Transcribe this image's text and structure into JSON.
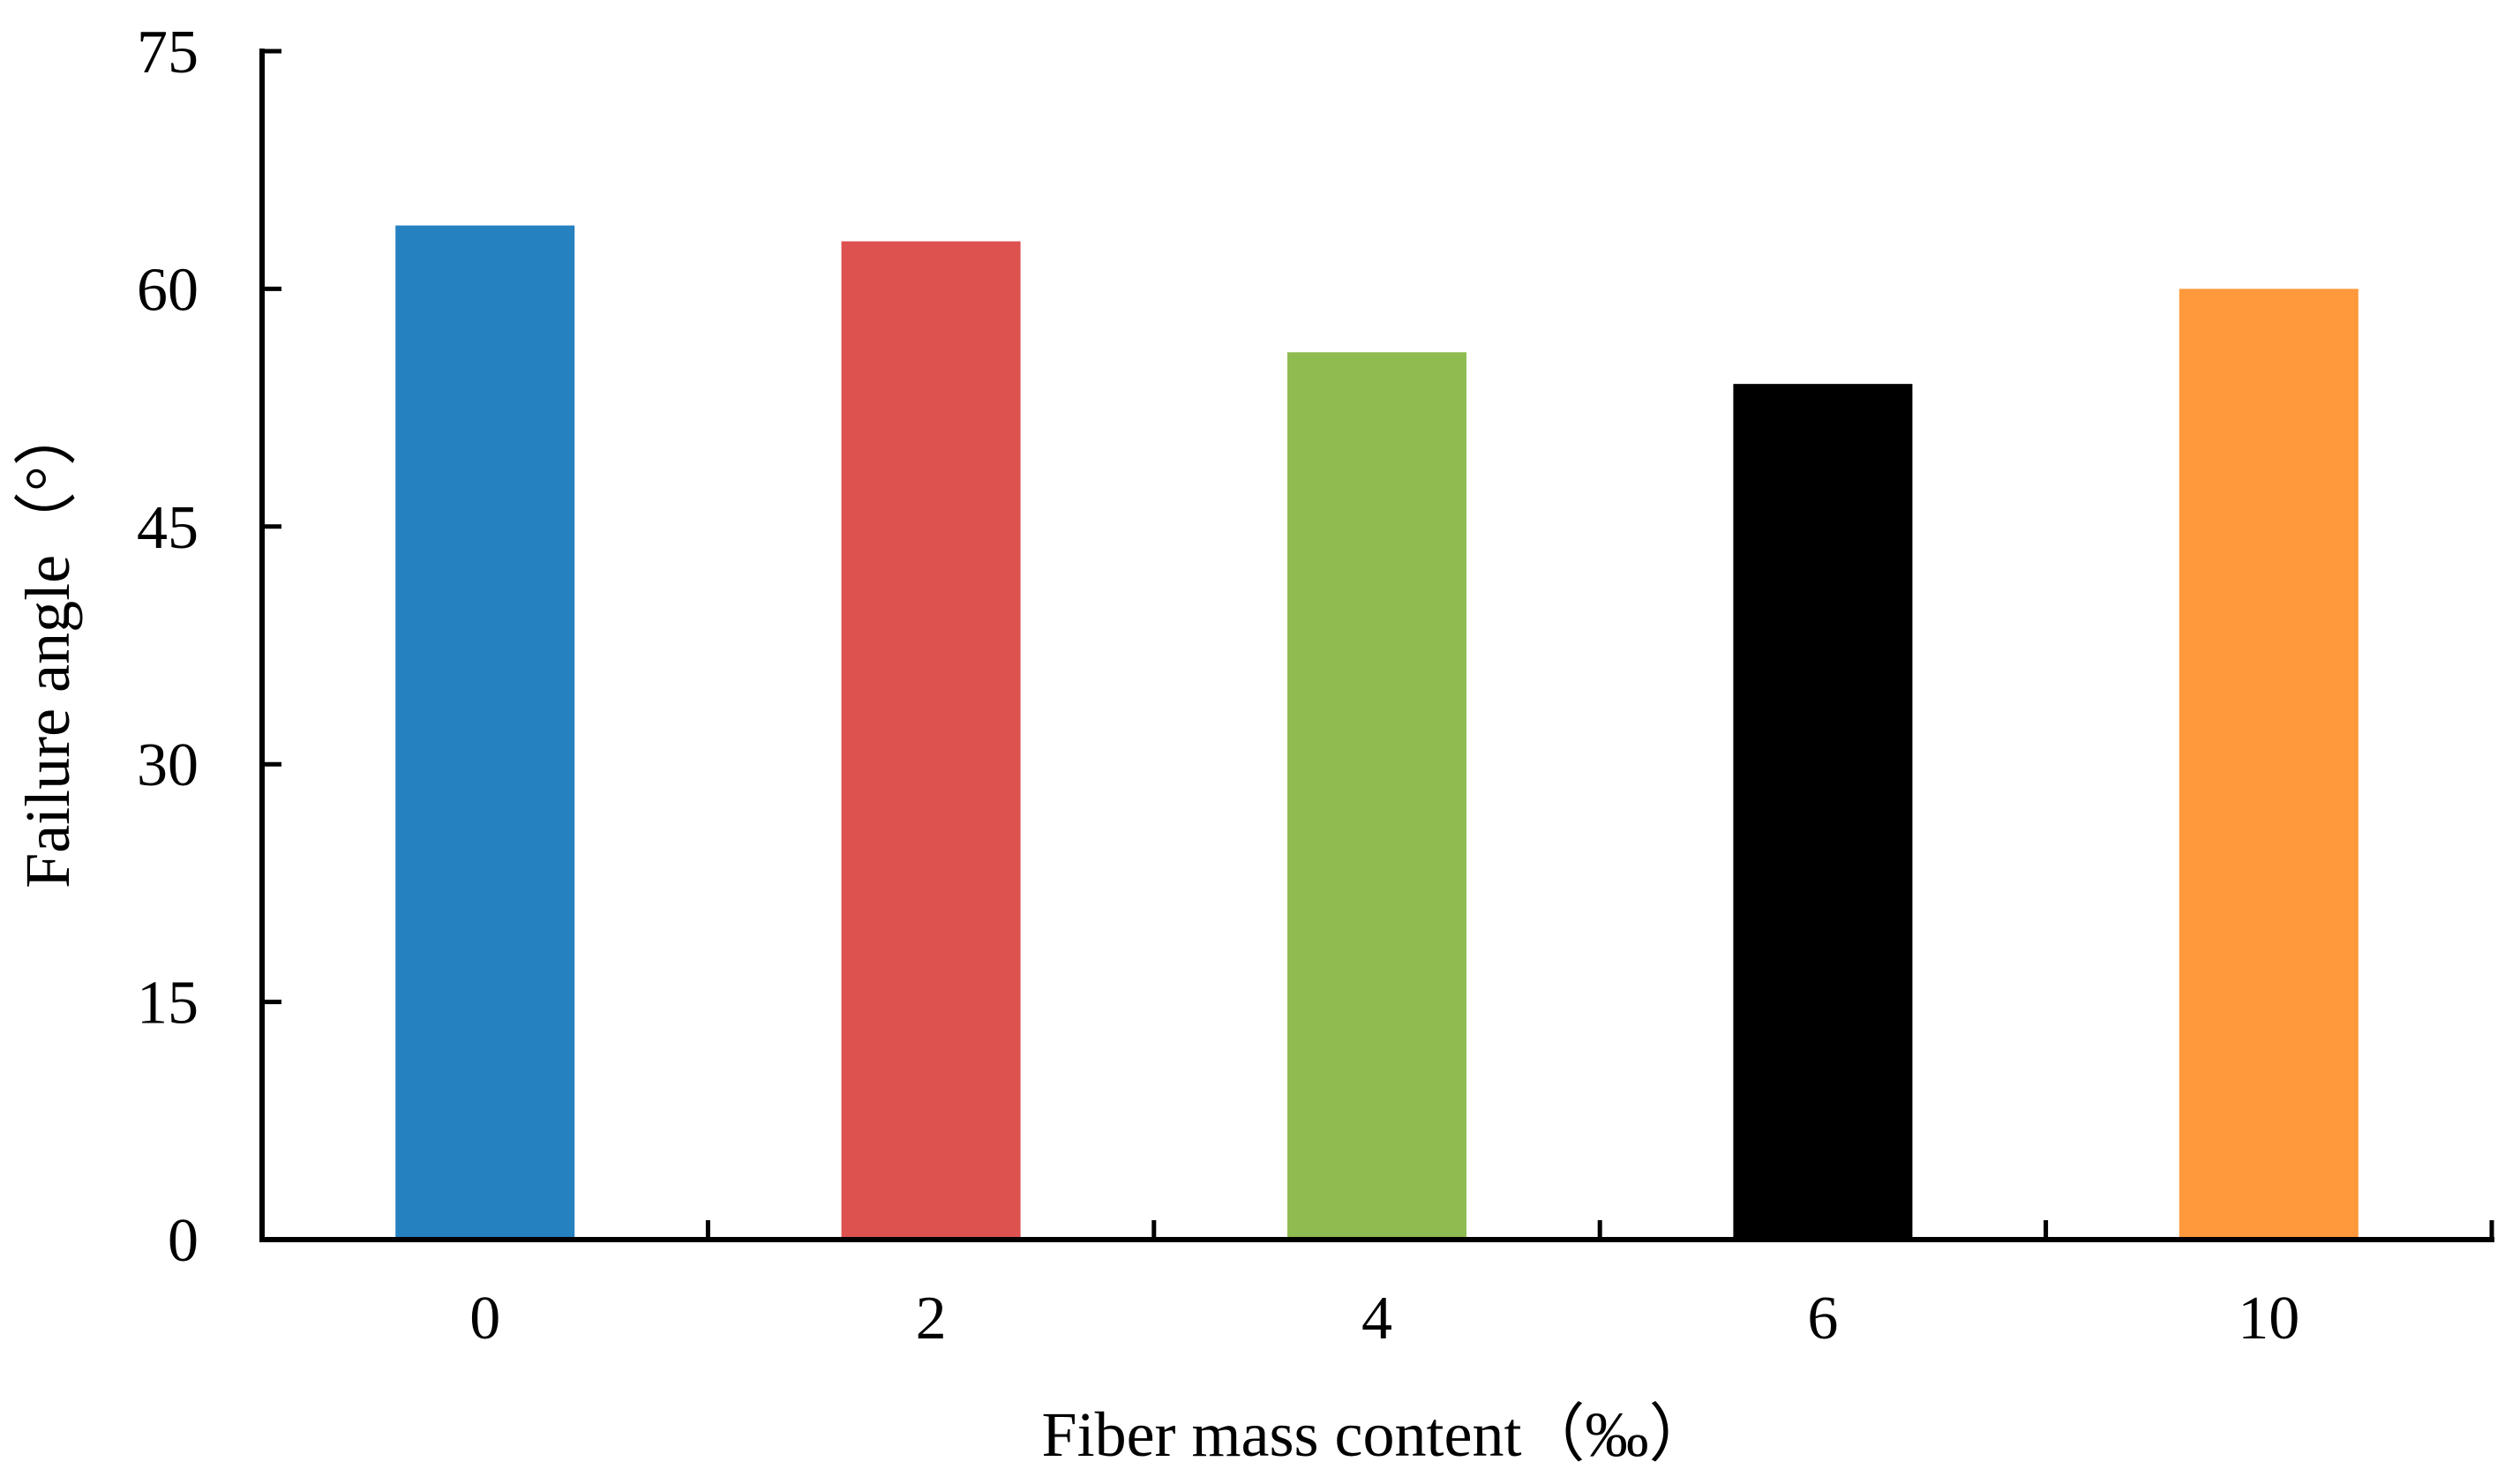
{
  "chart_data": {
    "type": "bar",
    "title": "",
    "xlabel": "Fiber mass content（‰）",
    "ylabel": "Failure angle（°）",
    "categories": [
      "0",
      "2",
      "4",
      "6",
      "10"
    ],
    "values": [
      64,
      63,
      56,
      54,
      60
    ],
    "colors": [
      "#2681C1",
      "#DD514F",
      "#8FBC50",
      "#000000",
      "#FF993B"
    ],
    "ylim": [
      0,
      75
    ],
    "yticks": [
      0,
      15,
      30,
      45,
      60,
      75
    ],
    "grid": false,
    "legend": "none"
  }
}
